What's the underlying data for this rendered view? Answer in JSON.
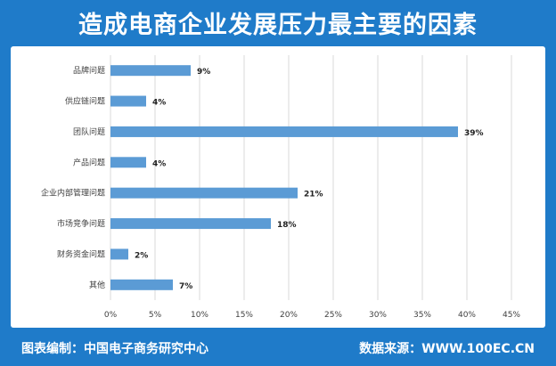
{
  "header": {
    "title": "造成电商企业发展压力最主要的因素"
  },
  "footer": {
    "left_text": "图表编制：中国电子商务研究中心",
    "right_text": "数据来源：WWW.100EC.CN"
  },
  "colors": {
    "frame": "#1f7bc9",
    "bar": "#5b9bd5",
    "grid": "#d9d9d9",
    "axis_text": "#404040"
  },
  "chart_data": {
    "type": "bar",
    "orientation": "horizontal",
    "title": "",
    "xlabel": "",
    "ylabel": "",
    "categories": [
      "品牌问题",
      "供应链问题",
      "团队问题",
      "产品问题",
      "企业内部管理问题",
      "市场竞争问题",
      "财务资金问题",
      "其他"
    ],
    "values": [
      9,
      4,
      39,
      4,
      21,
      18,
      2,
      7
    ],
    "value_labels": [
      "9%",
      "4%",
      "39%",
      "4%",
      "21%",
      "18%",
      "2%",
      "7%"
    ],
    "xlim": [
      0,
      45
    ],
    "xticks": [
      0,
      5,
      10,
      15,
      20,
      25,
      30,
      35,
      40,
      45
    ],
    "xtick_labels": [
      "0%",
      "5%",
      "10%",
      "15%",
      "20%",
      "25%",
      "30%",
      "35%",
      "40%",
      "45%"
    ],
    "grid": true,
    "legend": "none"
  }
}
